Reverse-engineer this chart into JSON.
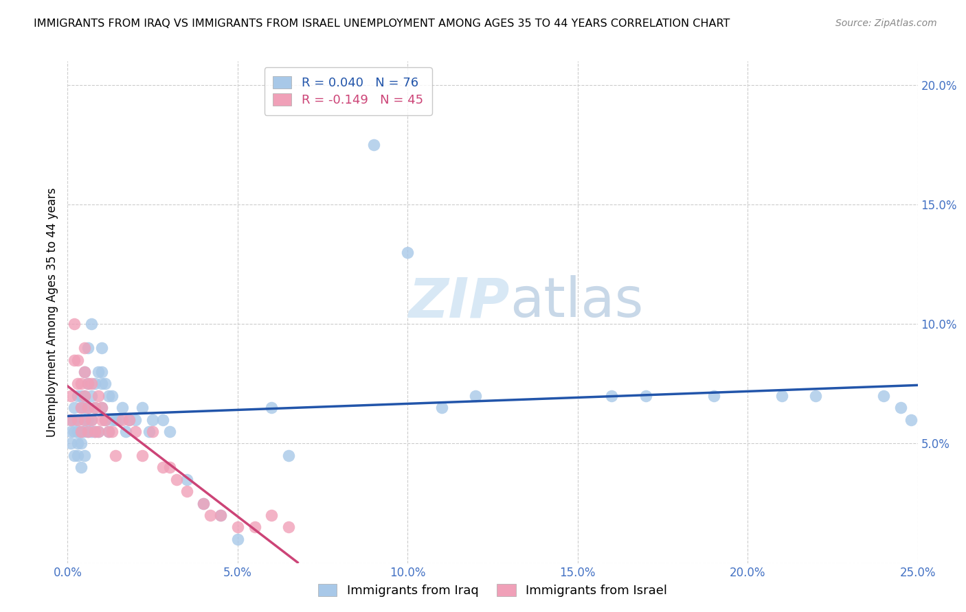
{
  "title": "IMMIGRANTS FROM IRAQ VS IMMIGRANTS FROM ISRAEL UNEMPLOYMENT AMONG AGES 35 TO 44 YEARS CORRELATION CHART",
  "source": "Source: ZipAtlas.com",
  "ylabel": "Unemployment Among Ages 35 to 44 years",
  "xlim": [
    0.0,
    0.25
  ],
  "ylim": [
    0.0,
    0.21
  ],
  "xticks": [
    0.0,
    0.05,
    0.1,
    0.15,
    0.2,
    0.25
  ],
  "yticks": [
    0.0,
    0.05,
    0.1,
    0.15,
    0.2
  ],
  "xticklabels": [
    "0.0%",
    "5.0%",
    "10.0%",
    "15.0%",
    "20.0%",
    "25.0%"
  ],
  "yticklabels": [
    "",
    "5.0%",
    "10.0%",
    "15.0%",
    "20.0%"
  ],
  "iraq_color": "#A8C8E8",
  "israel_color": "#F0A0B8",
  "iraq_R": 0.04,
  "iraq_N": 76,
  "israel_R": -0.149,
  "israel_N": 45,
  "iraq_line_color": "#2255AA",
  "israel_line_color": "#CC4477",
  "watermark_zip": "ZIP",
  "watermark_atlas": "atlas",
  "background_color": "#FFFFFF",
  "grid_color": "#CCCCCC",
  "tick_color": "#4472C4",
  "iraq_x": [
    0.001,
    0.001,
    0.001,
    0.002,
    0.002,
    0.002,
    0.002,
    0.003,
    0.003,
    0.003,
    0.003,
    0.003,
    0.004,
    0.004,
    0.004,
    0.004,
    0.004,
    0.005,
    0.005,
    0.005,
    0.005,
    0.005,
    0.005,
    0.006,
    0.006,
    0.006,
    0.006,
    0.006,
    0.007,
    0.007,
    0.007,
    0.007,
    0.008,
    0.008,
    0.008,
    0.009,
    0.009,
    0.01,
    0.01,
    0.01,
    0.01,
    0.011,
    0.011,
    0.012,
    0.012,
    0.013,
    0.013,
    0.014,
    0.015,
    0.016,
    0.017,
    0.018,
    0.02,
    0.022,
    0.024,
    0.025,
    0.028,
    0.03,
    0.035,
    0.04,
    0.045,
    0.05,
    0.06,
    0.065,
    0.09,
    0.1,
    0.11,
    0.12,
    0.16,
    0.17,
    0.19,
    0.21,
    0.22,
    0.24,
    0.245,
    0.248
  ],
  "iraq_y": [
    0.055,
    0.06,
    0.05,
    0.045,
    0.055,
    0.06,
    0.065,
    0.045,
    0.05,
    0.055,
    0.06,
    0.07,
    0.04,
    0.05,
    0.055,
    0.065,
    0.07,
    0.045,
    0.055,
    0.06,
    0.065,
    0.07,
    0.08,
    0.055,
    0.06,
    0.065,
    0.075,
    0.09,
    0.055,
    0.06,
    0.07,
    0.1,
    0.055,
    0.065,
    0.075,
    0.055,
    0.08,
    0.065,
    0.075,
    0.08,
    0.09,
    0.06,
    0.075,
    0.055,
    0.07,
    0.06,
    0.07,
    0.06,
    0.06,
    0.065,
    0.055,
    0.06,
    0.06,
    0.065,
    0.055,
    0.06,
    0.06,
    0.055,
    0.035,
    0.025,
    0.02,
    0.01,
    0.065,
    0.045,
    0.175,
    0.13,
    0.065,
    0.07,
    0.07,
    0.07,
    0.07,
    0.07,
    0.07,
    0.07,
    0.065,
    0.06
  ],
  "israel_x": [
    0.001,
    0.001,
    0.002,
    0.002,
    0.003,
    0.003,
    0.003,
    0.004,
    0.004,
    0.004,
    0.005,
    0.005,
    0.005,
    0.005,
    0.006,
    0.006,
    0.006,
    0.007,
    0.007,
    0.008,
    0.008,
    0.009,
    0.009,
    0.01,
    0.01,
    0.011,
    0.012,
    0.013,
    0.014,
    0.016,
    0.018,
    0.02,
    0.022,
    0.025,
    0.028,
    0.03,
    0.032,
    0.035,
    0.04,
    0.042,
    0.045,
    0.05,
    0.055,
    0.06,
    0.065
  ],
  "israel_y": [
    0.06,
    0.07,
    0.085,
    0.1,
    0.06,
    0.075,
    0.085,
    0.055,
    0.065,
    0.075,
    0.06,
    0.07,
    0.08,
    0.09,
    0.055,
    0.065,
    0.075,
    0.06,
    0.075,
    0.055,
    0.065,
    0.055,
    0.07,
    0.06,
    0.065,
    0.06,
    0.055,
    0.055,
    0.045,
    0.06,
    0.06,
    0.055,
    0.045,
    0.055,
    0.04,
    0.04,
    0.035,
    0.03,
    0.025,
    0.02,
    0.02,
    0.015,
    0.015,
    0.02,
    0.015
  ]
}
